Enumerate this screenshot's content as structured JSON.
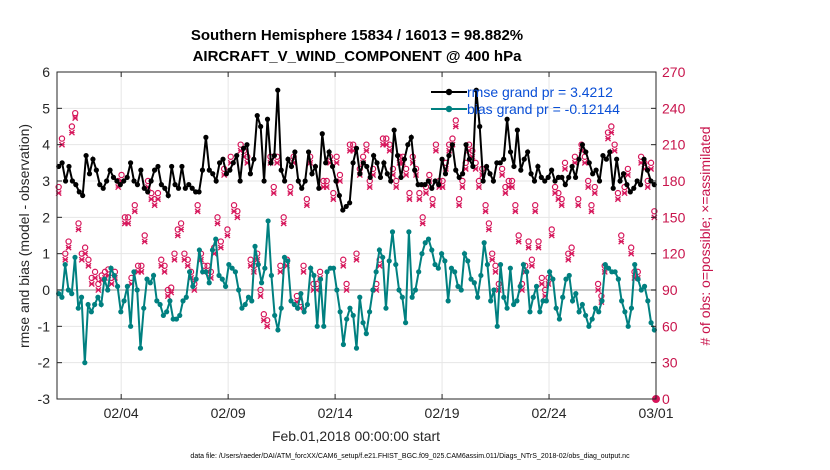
{
  "chart_data": {
    "type": "line",
    "title": "Southern Hemisphere 15834 / 16013 = 98.882%",
    "subtitle": "AIRCRAFT_V_WIND_COMPONENT @ 400 hPa",
    "xlabel": "Feb.01,2018 00:00:00 start",
    "ylabel": "rmse and bias (model - observation)",
    "ylabel_right": "# of obs: o=possible; ×=assimilated",
    "xlim": [
      0,
      28
    ],
    "ylim": [
      -3,
      6
    ],
    "ylim_right": [
      0,
      270
    ],
    "x_tick_values": [
      3,
      8,
      13,
      18,
      23,
      28
    ],
    "x_tick_labels": [
      "02/04",
      "02/09",
      "02/14",
      "02/19",
      "02/24",
      "03/01"
    ],
    "y_ticks": [
      -3,
      -2,
      -1,
      0,
      1,
      2,
      3,
      4,
      5,
      6
    ],
    "y_ticks_right": [
      0,
      30,
      60,
      90,
      120,
      150,
      180,
      210,
      240,
      270
    ],
    "grid": true,
    "legend_position": "top-right",
    "colors": {
      "rmse": "#000000",
      "bias": "#008080",
      "obs": "#d6155a",
      "zero": "#b8b8b8",
      "title": "#000000",
      "legend_text": "#0a4fd6"
    },
    "series": [
      {
        "name": "rmse",
        "legend": "rmse grand pr = 3.4212",
        "values": [
          3.4,
          3.5,
          3.0,
          3.4,
          3.0,
          2.9,
          2.7,
          2.6,
          3.7,
          3.2,
          3.6,
          3.3,
          2.9,
          2.8,
          3.0,
          3.3,
          3.1,
          3.0,
          2.9,
          3.0,
          3.1,
          3.5,
          3.0,
          2.9,
          3.3,
          2.8,
          2.7,
          3.0,
          3.3,
          3.4,
          2.9,
          2.8,
          2.6,
          3.4,
          2.9,
          2.8,
          3.4,
          2.8,
          2.9,
          2.8,
          2.7,
          2.7,
          3.3,
          4.2,
          3.3,
          3.2,
          3.0,
          3.5,
          3.6,
          3.2,
          3.3,
          3.5,
          3.7,
          3.0,
          3.9,
          4.0,
          3.2,
          3.6,
          4.8,
          4.5,
          3.0,
          4.7,
          3.5,
          3.7,
          5.5,
          3.3,
          3.0,
          3.6,
          3.4,
          3.8,
          3.0,
          2.8,
          3.0,
          3.8,
          3.2,
          3.4,
          2.8,
          4.3,
          3.5,
          3.8,
          3.4,
          3.0,
          2.6,
          2.2,
          2.3,
          2.4,
          3.5,
          3.9,
          3.2,
          3.5,
          3.4,
          3.1,
          3.7,
          3.5,
          3.1,
          3.5,
          3.2,
          3.0,
          4.4,
          3.7,
          3.1,
          3.6,
          4.0,
          4.2,
          3.3,
          2.9,
          2.9,
          2.9,
          3.0,
          2.8,
          3.0,
          2.9,
          3.6,
          3.2,
          3.7,
          4.0,
          3.3,
          3.1,
          3.2,
          4.0,
          3.6,
          3.4,
          5.5,
          4.5,
          3.0,
          3.4,
          3.2,
          3.0,
          3.5,
          3.5,
          3.6,
          4.7,
          3.8,
          3.4,
          4.4,
          3.3,
          3.6,
          3.8,
          3.2,
          3.0,
          3.4,
          3.1,
          3.0,
          3.1,
          3.3,
          3.0,
          3.1,
          3.1,
          2.9,
          3.1,
          3.4,
          3.1,
          3.6,
          4.0,
          3.8,
          3.5,
          3.2,
          3.3,
          3.0,
          3.7,
          3.6,
          3.8,
          2.8,
          3.6,
          3.0,
          3.2,
          2.9,
          2.7,
          2.8,
          3.0,
          2.9,
          3.6,
          3.3,
          3.0,
          2.9
        ],
        "markers": "filled-circle"
      },
      {
        "name": "bias",
        "legend": "bias grand pr = -0.12144",
        "values": [
          -0.1,
          -0.2,
          0.7,
          0.0,
          -0.1,
          0.9,
          -0.5,
          -0.2,
          -2.0,
          -0.4,
          -0.6,
          -0.4,
          -0.2,
          -0.4,
          0.3,
          0.0,
          0.6,
          0.4,
          0.1,
          -0.6,
          -0.3,
          0.1,
          -1.0,
          0.5,
          0.0,
          -1.6,
          -0.5,
          0.3,
          0.2,
          0.4,
          -0.3,
          -0.4,
          -0.7,
          -0.6,
          -0.3,
          -0.8,
          -0.8,
          -0.7,
          -0.3,
          -0.2,
          0.5,
          0.1,
          0.3,
          1.1,
          0.5,
          0.5,
          0.2,
          1.1,
          1.4,
          0.4,
          0.3,
          0.1,
          0.7,
          0.6,
          0.5,
          0.0,
          -0.5,
          -0.4,
          -0.2,
          -0.3,
          1.2,
          0.7,
          0.2,
          0.6,
          1.9,
          0.4,
          -0.7,
          -1.1,
          -0.5,
          0.9,
          0.8,
          -0.3,
          -0.4,
          -0.5,
          -0.1,
          -0.6,
          -0.4,
          0.6,
          0.4,
          -1.0,
          0.3,
          -1.0,
          0.5,
          0.6,
          0.6,
          0.0,
          -0.6,
          -1.5,
          -0.8,
          -0.5,
          -0.7,
          -1.6,
          -0.2,
          -0.9,
          -1.2,
          -0.6,
          0.0,
          0.5,
          1.1,
          0.9,
          -0.5,
          0.8,
          1.6,
          0.7,
          0.0,
          -0.2,
          -0.9,
          1.6,
          -0.2,
          0.0,
          0.5,
          1.0,
          1.3,
          1.4,
          1.1,
          0.7,
          0.6,
          1.0,
          0.8,
          -0.3,
          0.6,
          0.5,
          0.1,
          0.0,
          1.0,
          0.8,
          0.3,
          0.2,
          -0.2,
          0.4,
          1.3,
          0.7,
          -0.3,
          0.0,
          -1.0,
          0.7,
          -0.2,
          -0.5,
          0.6,
          -0.4,
          -0.3,
          0.1,
          0.7,
          0.5,
          -0.6,
          -0.2,
          0.1,
          -0.6,
          -0.3,
          -0.3,
          0.5,
          0.3,
          -0.5,
          -0.8,
          -0.2,
          0.3,
          0.4,
          -0.3,
          -0.1,
          -0.6,
          -0.4,
          -0.7,
          -1.0,
          -0.8,
          -0.5,
          -0.6,
          -0.3,
          0.7,
          0.6,
          0.5,
          0.5,
          0.3,
          -0.3,
          -0.6,
          -1.0,
          -0.5,
          0.7,
          0.3,
          0.0,
          0.1,
          -0.3,
          -0.9,
          -1.1
        ],
        "markers": "filled-circle"
      },
      {
        "name": "obs_possible",
        "marker": "o",
        "values": [
          175,
          215,
          120,
          130,
          225,
          236,
          145,
          120,
          125,
          115,
          100,
          105,
          95,
          102,
          105,
          107,
          100,
          105,
          180,
          185,
          150,
          150,
          100,
          160,
          110,
          110,
          135,
          180,
          170,
          165,
          170,
          115,
          110,
          90,
          92,
          120,
          140,
          145,
          120,
          115,
          105,
          95,
          160,
          120,
          110,
          110,
          105,
          125,
          150,
          130,
          190,
          140,
          200,
          160,
          155,
          210,
          205,
          200,
          115,
          110,
          120,
          90,
          70,
          65,
          200,
          175,
          200,
          110,
          150,
          115,
          175,
          200,
          85,
          80,
          110,
          165,
          200,
          95,
          95,
          105,
          180,
          180,
          200,
          170,
          200,
          185,
          115,
          95,
          210,
          210,
          120,
          190,
          200,
          210,
          180,
          190,
          95,
          115,
          215,
          215,
          210,
          190,
          180,
          200,
          200,
          190,
          170,
          200,
          190,
          170,
          150,
          175,
          185,
          165,
          210,
          180,
          180,
          195,
          210,
          215,
          230,
          165,
          180,
          195,
          210,
          205,
          195,
          180,
          190,
          160,
          145,
          120,
          110,
          95,
          190,
          175,
          180,
          180,
          160,
          135,
          95,
          110,
          130,
          115,
          160,
          130,
          100,
          90,
          100,
          140,
          175,
          170,
          165,
          195,
          120,
          125,
          200,
          165,
          210,
          200,
          180,
          160,
          175,
          95,
          85,
          110,
          220,
          225,
          210,
          170,
          135,
          175,
          190,
          125,
          105,
          105,
          200,
          195,
          180,
          195,
          155
        ],
        "note": "approximate counts, right axis"
      },
      {
        "name": "obs_assimilated",
        "marker": "x",
        "values": [
          170,
          210,
          115,
          125,
          220,
          232,
          140,
          115,
          120,
          110,
          95,
          100,
          90,
          98,
          100,
          102,
          95,
          100,
          175,
          180,
          145,
          145,
          95,
          155,
          105,
          105,
          130,
          175,
          165,
          160,
          165,
          110,
          105,
          85,
          88,
          115,
          135,
          140,
          115,
          110,
          100,
          90,
          155,
          115,
          105,
          105,
          100,
          120,
          145,
          125,
          185,
          135,
          195,
          155,
          150,
          205,
          200,
          195,
          110,
          105,
          115,
          85,
          65,
          60,
          195,
          170,
          195,
          105,
          145,
          110,
          170,
          195,
          80,
          75,
          105,
          160,
          195,
          90,
          90,
          100,
          175,
          175,
          195,
          165,
          195,
          180,
          110,
          90,
          205,
          205,
          115,
          185,
          195,
          205,
          175,
          185,
          90,
          110,
          210,
          210,
          205,
          185,
          175,
          195,
          195,
          185,
          165,
          195,
          185,
          165,
          145,
          170,
          180,
          160,
          205,
          175,
          175,
          190,
          205,
          210,
          225,
          160,
          175,
          190,
          205,
          200,
          190,
          175,
          185,
          155,
          140,
          115,
          105,
          90,
          185,
          170,
          175,
          175,
          155,
          130,
          90,
          105,
          125,
          110,
          155,
          125,
          95,
          85,
          95,
          135,
          170,
          165,
          160,
          190,
          115,
          120,
          195,
          160,
          205,
          195,
          175,
          155,
          170,
          90,
          80,
          105,
          215,
          220,
          205,
          165,
          130,
          170,
          185,
          120,
          100,
          100,
          195,
          190,
          175,
          190,
          150
        ]
      }
    ],
    "footnote": "data file: /Users/raeder/DAI/ATM_forcXX/CAM6_setup/f.e21.FHIST_BGC.f09_025.CAM6assim.011/Diags_NTrS_2018-02/obs_diag_output.nc"
  }
}
